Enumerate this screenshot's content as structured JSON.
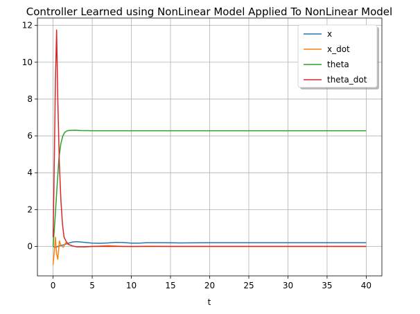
{
  "chart_data": {
    "type": "line",
    "title": "Controller Learned using NonLinear Model Applied To NonLinear Model",
    "xlabel": "t",
    "ylabel": "",
    "xlim": [
      -2,
      42
    ],
    "ylim": [
      -1.6,
      12.4
    ],
    "xticks": [
      0,
      5,
      10,
      15,
      20,
      25,
      30,
      35,
      40
    ],
    "yticks": [
      0,
      2,
      4,
      6,
      8,
      10,
      12
    ],
    "grid": true,
    "legend_position": "top-right",
    "series": [
      {
        "name": "x",
        "color": "#1f77b4",
        "points": [
          [
            0,
            0
          ],
          [
            0.3,
            -0.05
          ],
          [
            0.6,
            0
          ],
          [
            1.0,
            0.05
          ],
          [
            1.5,
            0.1
          ],
          [
            2,
            0.18
          ],
          [
            2.5,
            0.24
          ],
          [
            3,
            0.26
          ],
          [
            4,
            0.22
          ],
          [
            5,
            0.18
          ],
          [
            6,
            0.17
          ],
          [
            7,
            0.19
          ],
          [
            8,
            0.22
          ],
          [
            9,
            0.21
          ],
          [
            10,
            0.18
          ],
          [
            11,
            0.18
          ],
          [
            12,
            0.2
          ],
          [
            14,
            0.2
          ],
          [
            16,
            0.19
          ],
          [
            20,
            0.2
          ],
          [
            25,
            0.2
          ],
          [
            30,
            0.2
          ],
          [
            35,
            0.2
          ],
          [
            40,
            0.2
          ]
        ]
      },
      {
        "name": "x_dot",
        "color": "#ff7f0e",
        "points": [
          [
            0,
            -1.0
          ],
          [
            0.15,
            -0.3
          ],
          [
            0.3,
            0.5
          ],
          [
            0.45,
            -0.4
          ],
          [
            0.6,
            -0.7
          ],
          [
            0.8,
            0.3
          ],
          [
            1.0,
            0.05
          ],
          [
            1.3,
            -0.05
          ],
          [
            1.6,
            0.2
          ],
          [
            2.0,
            0.1
          ],
          [
            2.5,
            0.02
          ],
          [
            3,
            -0.02
          ],
          [
            4,
            -0.03
          ],
          [
            5,
            0
          ],
          [
            6,
            0.02
          ],
          [
            7,
            0.04
          ],
          [
            8,
            0.02
          ],
          [
            9,
            0
          ],
          [
            10,
            -0.01
          ],
          [
            12,
            0.01
          ],
          [
            15,
            0
          ],
          [
            20,
            0
          ],
          [
            30,
            0
          ],
          [
            40,
            0
          ]
        ]
      },
      {
        "name": "theta",
        "color": "#2ca02c",
        "points": [
          [
            0,
            0
          ],
          [
            0.25,
            1.5
          ],
          [
            0.5,
            3.2
          ],
          [
            0.75,
            4.8
          ],
          [
            1.0,
            5.6
          ],
          [
            1.25,
            6.0
          ],
          [
            1.5,
            6.2
          ],
          [
            1.8,
            6.28
          ],
          [
            2.2,
            6.3
          ],
          [
            2.8,
            6.31
          ],
          [
            3.5,
            6.29
          ],
          [
            5,
            6.28
          ],
          [
            10,
            6.28
          ],
          [
            20,
            6.28
          ],
          [
            30,
            6.28
          ],
          [
            40,
            6.28
          ]
        ]
      },
      {
        "name": "theta_dot",
        "color": "#d62728",
        "points": [
          [
            0,
            0.5
          ],
          [
            0.1,
            3.0
          ],
          [
            0.2,
            6.0
          ],
          [
            0.3,
            9.0
          ],
          [
            0.45,
            11.75
          ],
          [
            0.6,
            8.0
          ],
          [
            0.8,
            4.5
          ],
          [
            1.0,
            2.5
          ],
          [
            1.2,
            1.2
          ],
          [
            1.4,
            0.5
          ],
          [
            1.7,
            0.25
          ],
          [
            2.0,
            0.1
          ],
          [
            2.5,
            0.02
          ],
          [
            3,
            -0.02
          ],
          [
            4,
            -0.02
          ],
          [
            5,
            0
          ],
          [
            7,
            0
          ],
          [
            10,
            0
          ],
          [
            20,
            0
          ],
          [
            30,
            0
          ],
          [
            40,
            0
          ]
        ]
      }
    ]
  }
}
